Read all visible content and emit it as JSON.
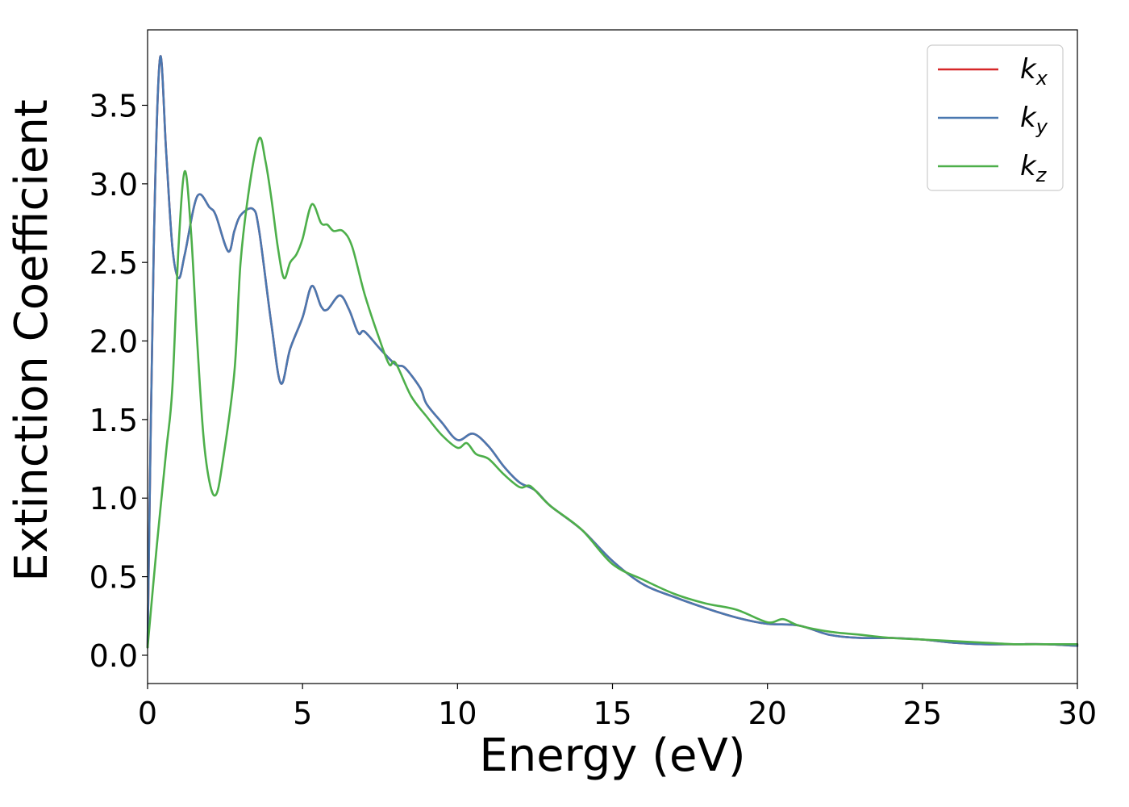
{
  "chart_data": {
    "type": "line",
    "title": "",
    "xlabel": "Energy (eV)",
    "ylabel": "Extinction Coefficient",
    "xlim": [
      0,
      30
    ],
    "ylim": [
      -0.18,
      3.98
    ],
    "xticks": [
      0,
      5,
      10,
      15,
      20,
      25,
      30
    ],
    "xtick_labels": [
      "0",
      "5",
      "10",
      "15",
      "20",
      "25",
      "30"
    ],
    "yticks": [
      0.0,
      0.5,
      1.0,
      1.5,
      2.0,
      2.5,
      3.0,
      3.5
    ],
    "ytick_labels": [
      "0.0",
      "0.5",
      "1.0",
      "1.5",
      "2.0",
      "2.5",
      "3.0",
      "3.5"
    ],
    "grid": false,
    "legend_position": "top-right",
    "series": [
      {
        "name": "k",
        "subscript": "x",
        "color": "#d62728",
        "x": [
          0,
          0.2,
          0.4,
          0.6,
          0.8,
          1.0,
          1.2,
          1.6,
          2.0,
          2.2,
          2.6,
          2.8,
          3.0,
          3.4,
          3.6,
          4.0,
          4.3,
          4.6,
          5.0,
          5.3,
          5.6,
          5.8,
          6.2,
          6.5,
          6.8,
          7.0,
          7.5,
          8.0,
          8.3,
          8.8,
          9.0,
          9.5,
          10.0,
          10.5,
          11.0,
          11.5,
          12.0,
          12.5,
          13.0,
          14.0,
          15.0,
          16.0,
          17.0,
          18.0,
          19.0,
          20.0,
          21.0,
          22.0,
          23.0,
          24.0,
          25.0,
          26.0,
          27.0,
          28.0,
          29.0,
          30.0
        ],
        "y": [
          0.05,
          2.6,
          3.8,
          3.2,
          2.6,
          2.4,
          2.55,
          2.92,
          2.85,
          2.8,
          2.57,
          2.7,
          2.8,
          2.84,
          2.7,
          2.1,
          1.73,
          1.95,
          2.15,
          2.35,
          2.22,
          2.2,
          2.29,
          2.2,
          2.05,
          2.06,
          1.95,
          1.85,
          1.83,
          1.7,
          1.6,
          1.48,
          1.37,
          1.41,
          1.33,
          1.2,
          1.1,
          1.05,
          0.95,
          0.8,
          0.6,
          0.45,
          0.37,
          0.3,
          0.24,
          0.2,
          0.19,
          0.13,
          0.11,
          0.11,
          0.1,
          0.08,
          0.07,
          0.07,
          0.07,
          0.06
        ]
      },
      {
        "name": "k",
        "subscript": "y",
        "color": "#4a78b0",
        "x": [
          0,
          0.2,
          0.4,
          0.6,
          0.8,
          1.0,
          1.2,
          1.6,
          2.0,
          2.2,
          2.6,
          2.8,
          3.0,
          3.4,
          3.6,
          4.0,
          4.3,
          4.6,
          5.0,
          5.3,
          5.6,
          5.8,
          6.2,
          6.5,
          6.8,
          7.0,
          7.5,
          8.0,
          8.3,
          8.8,
          9.0,
          9.5,
          10.0,
          10.5,
          11.0,
          11.5,
          12.0,
          12.5,
          13.0,
          14.0,
          15.0,
          16.0,
          17.0,
          18.0,
          19.0,
          20.0,
          21.0,
          22.0,
          23.0,
          24.0,
          25.0,
          26.0,
          27.0,
          28.0,
          29.0,
          30.0
        ],
        "y": [
          0.05,
          2.6,
          3.8,
          3.2,
          2.6,
          2.4,
          2.55,
          2.92,
          2.85,
          2.8,
          2.57,
          2.7,
          2.8,
          2.84,
          2.7,
          2.1,
          1.73,
          1.95,
          2.15,
          2.35,
          2.22,
          2.2,
          2.29,
          2.2,
          2.05,
          2.06,
          1.95,
          1.85,
          1.83,
          1.7,
          1.6,
          1.48,
          1.37,
          1.41,
          1.33,
          1.2,
          1.1,
          1.05,
          0.95,
          0.8,
          0.6,
          0.45,
          0.37,
          0.3,
          0.24,
          0.2,
          0.19,
          0.13,
          0.11,
          0.11,
          0.1,
          0.08,
          0.07,
          0.07,
          0.07,
          0.06
        ]
      },
      {
        "name": "k",
        "subscript": "z",
        "color": "#4daf4a",
        "x": [
          0,
          0.3,
          0.6,
          0.8,
          1.0,
          1.2,
          1.4,
          1.6,
          1.8,
          2.0,
          2.2,
          2.4,
          2.8,
          3.0,
          3.3,
          3.6,
          3.8,
          4.0,
          4.2,
          4.4,
          4.6,
          4.8,
          5.0,
          5.3,
          5.6,
          5.8,
          6.0,
          6.3,
          6.6,
          7.0,
          7.5,
          7.8,
          8.0,
          8.5,
          9.0,
          9.5,
          10.0,
          10.3,
          10.6,
          11.0,
          11.5,
          12.0,
          12.3,
          12.5,
          13.0,
          14.0,
          15.0,
          16.0,
          17.0,
          18.0,
          19.0,
          20.0,
          20.5,
          21.0,
          22.0,
          23.0,
          24.0,
          25.0,
          26.0,
          27.0,
          28.0,
          29.0,
          30.0
        ],
        "y": [
          0.05,
          0.7,
          1.3,
          1.7,
          2.6,
          3.08,
          2.7,
          2.0,
          1.4,
          1.1,
          1.02,
          1.2,
          1.8,
          2.5,
          3.0,
          3.29,
          3.15,
          2.9,
          2.6,
          2.4,
          2.5,
          2.55,
          2.65,
          2.87,
          2.75,
          2.74,
          2.7,
          2.7,
          2.6,
          2.3,
          2.0,
          1.85,
          1.86,
          1.65,
          1.52,
          1.4,
          1.32,
          1.35,
          1.28,
          1.25,
          1.15,
          1.07,
          1.08,
          1.05,
          0.95,
          0.8,
          0.58,
          0.48,
          0.39,
          0.33,
          0.29,
          0.21,
          0.23,
          0.19,
          0.15,
          0.13,
          0.11,
          0.1,
          0.09,
          0.08,
          0.07,
          0.07,
          0.07
        ]
      }
    ]
  }
}
